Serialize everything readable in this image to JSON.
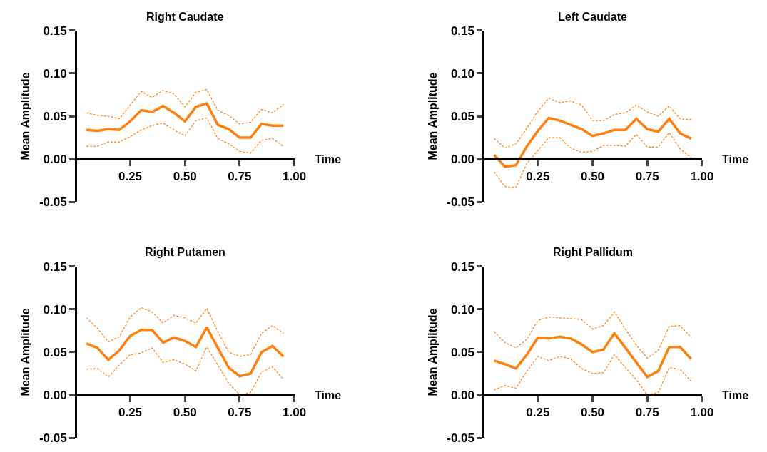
{
  "chart_data": [
    {
      "type": "line",
      "title": "Right Caudate",
      "ylabel": "Mean Amplitude",
      "xlabel": "Time",
      "x": [
        0.05,
        0.1,
        0.15,
        0.2,
        0.25,
        0.3,
        0.35,
        0.4,
        0.45,
        0.5,
        0.55,
        0.6,
        0.65,
        0.7,
        0.75,
        0.8,
        0.85,
        0.9,
        0.95
      ],
      "xlim": [
        0,
        1
      ],
      "xticks": [
        {
          "value": 0.25,
          "label": "0.25"
        },
        {
          "value": 0.5,
          "label": "0.50"
        },
        {
          "value": 0.75,
          "label": "0.75"
        },
        {
          "value": 1,
          "label": "1.00"
        }
      ],
      "ylim": [
        -0.05,
        0.15
      ],
      "yticks": [
        {
          "value": -0.05,
          "label": "-0.05"
        },
        {
          "value": 0,
          "label": "0.00"
        },
        {
          "value": 0.05,
          "label": "0.05"
        },
        {
          "value": 0.1,
          "label": "0.10"
        },
        {
          "value": 0.15,
          "label": "0.15"
        }
      ],
      "series": [
        {
          "color": "#ff7f0f",
          "line_style": "dashed",
          "values": [
            0.054,
            0.051,
            0.05,
            0.047,
            0.063,
            0.079,
            0.072,
            0.08,
            0.076,
            0.061,
            0.078,
            0.081,
            0.057,
            0.051,
            0.041,
            0.043,
            0.058,
            0.054,
            0.064
          ]
        },
        {
          "color": "#ff7f0f",
          "line_style": "solid",
          "values": [
            0.034,
            0.033,
            0.035,
            0.034,
            0.044,
            0.057,
            0.055,
            0.062,
            0.054,
            0.044,
            0.061,
            0.065,
            0.04,
            0.035,
            0.025,
            0.025,
            0.041,
            0.039,
            0.039
          ]
        },
        {
          "color": "#ff7f0f",
          "line_style": "dashed",
          "values": [
            0.015,
            0.015,
            0.02,
            0.02,
            0.026,
            0.034,
            0.039,
            0.042,
            0.034,
            0.027,
            0.045,
            0.048,
            0.024,
            0.018,
            0.009,
            0.007,
            0.022,
            0.024,
            0.015
          ]
        }
      ]
    },
    {
      "type": "line",
      "title": "Left Caudate",
      "ylabel": "Mean Amplitude",
      "xlabel": "Time",
      "x": [
        0.05,
        0.1,
        0.15,
        0.2,
        0.25,
        0.3,
        0.35,
        0.4,
        0.45,
        0.5,
        0.55,
        0.6,
        0.65,
        0.7,
        0.75,
        0.8,
        0.85,
        0.9,
        0.95
      ],
      "xlim": [
        0,
        1
      ],
      "xticks": [
        {
          "value": 0.25,
          "label": "0.25"
        },
        {
          "value": 0.5,
          "label": "0.50"
        },
        {
          "value": 0.75,
          "label": "0.75"
        },
        {
          "value": 1,
          "label": "1.00"
        }
      ],
      "ylim": [
        -0.05,
        0.15
      ],
      "yticks": [
        {
          "value": -0.05,
          "label": "-0.05"
        },
        {
          "value": 0,
          "label": "0.00"
        },
        {
          "value": 0.05,
          "label": "0.05"
        },
        {
          "value": 0.1,
          "label": "0.10"
        },
        {
          "value": 0.15,
          "label": "0.15"
        }
      ],
      "series": [
        {
          "color": "#ff7f0f",
          "line_style": "dashed",
          "values": [
            0.024,
            0.013,
            0.018,
            0.036,
            0.056,
            0.071,
            0.066,
            0.068,
            0.063,
            0.045,
            0.045,
            0.052,
            0.054,
            0.063,
            0.055,
            0.05,
            0.062,
            0.047,
            0.046
          ]
        },
        {
          "color": "#ff7f0f",
          "line_style": "solid",
          "values": [
            0.005,
            -0.009,
            -0.007,
            0.015,
            0.033,
            0.048,
            0.045,
            0.04,
            0.035,
            0.027,
            0.03,
            0.034,
            0.034,
            0.047,
            0.035,
            0.032,
            0.047,
            0.03,
            0.024
          ]
        },
        {
          "color": "#ff7f0f",
          "line_style": "dashed",
          "values": [
            -0.015,
            -0.032,
            -0.033,
            -0.005,
            0.01,
            0.025,
            0.025,
            0.013,
            0.008,
            0.009,
            0.016,
            0.016,
            0.015,
            0.029,
            0.014,
            0.014,
            0.031,
            0.012,
            0.002
          ]
        }
      ]
    },
    {
      "type": "line",
      "title": "Right Putamen",
      "ylabel": "Mean Amplitude",
      "xlabel": "Time",
      "x": [
        0.05,
        0.1,
        0.15,
        0.2,
        0.25,
        0.3,
        0.35,
        0.4,
        0.45,
        0.5,
        0.55,
        0.6,
        0.65,
        0.7,
        0.75,
        0.8,
        0.85,
        0.9,
        0.95
      ],
      "xlim": [
        0,
        1
      ],
      "xticks": [
        {
          "value": 0.25,
          "label": "0.25"
        },
        {
          "value": 0.5,
          "label": "0.50"
        },
        {
          "value": 0.75,
          "label": "0.75"
        },
        {
          "value": 1,
          "label": "1.00"
        }
      ],
      "ylim": [
        -0.05,
        0.15
      ],
      "yticks": [
        {
          "value": -0.05,
          "label": "-0.05"
        },
        {
          "value": 0,
          "label": "0.00"
        },
        {
          "value": 0.05,
          "label": "0.05"
        },
        {
          "value": 0.1,
          "label": "0.10"
        },
        {
          "value": 0.15,
          "label": "0.15"
        }
      ],
      "series": [
        {
          "color": "#ff7f0f",
          "line_style": "dashed",
          "values": [
            0.09,
            0.078,
            0.062,
            0.068,
            0.091,
            0.102,
            0.097,
            0.084,
            0.093,
            0.09,
            0.084,
            0.101,
            0.074,
            0.05,
            0.045,
            0.047,
            0.072,
            0.081,
            0.072
          ]
        },
        {
          "color": "#ff7f0f",
          "line_style": "solid",
          "values": [
            0.06,
            0.055,
            0.041,
            0.052,
            0.069,
            0.076,
            0.076,
            0.061,
            0.067,
            0.063,
            0.056,
            0.079,
            0.055,
            0.032,
            0.022,
            0.025,
            0.05,
            0.057,
            0.045
          ]
        },
        {
          "color": "#ff7f0f",
          "line_style": "dashed",
          "values": [
            0.03,
            0.031,
            0.021,
            0.035,
            0.047,
            0.049,
            0.055,
            0.038,
            0.041,
            0.036,
            0.028,
            0.056,
            0.035,
            0.014,
            0.0,
            0.003,
            0.027,
            0.033,
            0.018
          ]
        }
      ]
    },
    {
      "type": "line",
      "title": "Right Pallidum",
      "ylabel": "Mean Amplitude",
      "xlabel": "Time",
      "x": [
        0.05,
        0.1,
        0.15,
        0.2,
        0.25,
        0.3,
        0.35,
        0.4,
        0.45,
        0.5,
        0.55,
        0.6,
        0.65,
        0.7,
        0.75,
        0.8,
        0.85,
        0.9,
        0.95
      ],
      "xlim": [
        0,
        1
      ],
      "xticks": [
        {
          "value": 0.25,
          "label": "0.25"
        },
        {
          "value": 0.5,
          "label": "0.50"
        },
        {
          "value": 0.75,
          "label": "0.75"
        },
        {
          "value": 1,
          "label": "1.00"
        }
      ],
      "ylim": [
        -0.05,
        0.15
      ],
      "yticks": [
        {
          "value": -0.05,
          "label": "-0.05"
        },
        {
          "value": 0,
          "label": "0.00"
        },
        {
          "value": 0.05,
          "label": "0.05"
        },
        {
          "value": 0.1,
          "label": "0.10"
        },
        {
          "value": 0.15,
          "label": "0.15"
        }
      ],
      "series": [
        {
          "color": "#ff7f0f",
          "line_style": "dashed",
          "values": [
            0.074,
            0.061,
            0.055,
            0.065,
            0.087,
            0.091,
            0.09,
            0.089,
            0.088,
            0.077,
            0.081,
            0.097,
            0.077,
            0.058,
            0.043,
            0.052,
            0.08,
            0.081,
            0.067
          ]
        },
        {
          "color": "#ff7f0f",
          "line_style": "solid",
          "values": [
            0.04,
            0.036,
            0.031,
            0.047,
            0.067,
            0.066,
            0.068,
            0.066,
            0.059,
            0.05,
            0.053,
            0.072,
            0.055,
            0.038,
            0.021,
            0.028,
            0.056,
            0.056,
            0.042
          ]
        },
        {
          "color": "#ff7f0f",
          "line_style": "dashed",
          "values": [
            0.006,
            0.011,
            0.008,
            0.028,
            0.045,
            0.04,
            0.045,
            0.042,
            0.031,
            0.025,
            0.026,
            0.047,
            0.032,
            0.018,
            0.0,
            0.003,
            0.032,
            0.03,
            0.016
          ]
        }
      ]
    }
  ]
}
